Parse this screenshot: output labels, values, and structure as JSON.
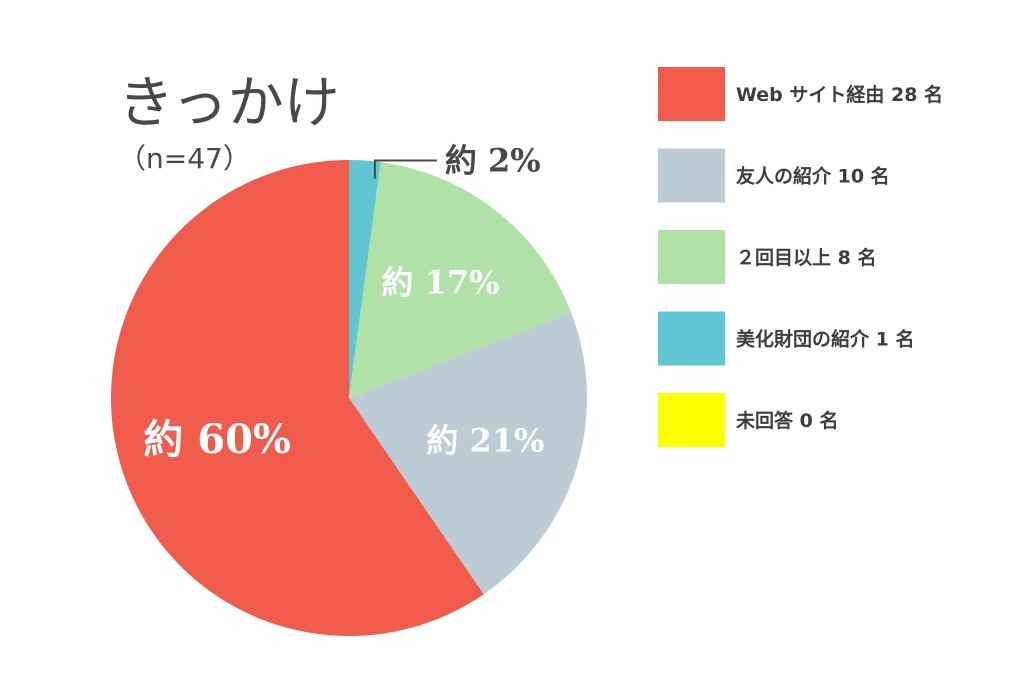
{
  "chart_data": {
    "type": "pie",
    "title": "きっかけ",
    "subtitle": "（n=47）",
    "total": 47,
    "slices": [
      {
        "legend": "Web サイト経由 28 名",
        "count": 28,
        "label": "約 60%",
        "color": "#f15b4c"
      },
      {
        "legend": "友人の紹介 10 名",
        "count": 10,
        "label": "約 21%",
        "color": "#bccbd4"
      },
      {
        "legend": "２回目以上 8 名",
        "count": 8,
        "label": "約 17%",
        "color": "#b0e1a6"
      },
      {
        "legend": "美化財団の紹介 1 名",
        "count": 1,
        "label": "約 2%",
        "color": "#61c6d4"
      },
      {
        "legend": "未回答 0 名",
        "count": 0,
        "label": "",
        "color": "#ffff00"
      }
    ]
  }
}
